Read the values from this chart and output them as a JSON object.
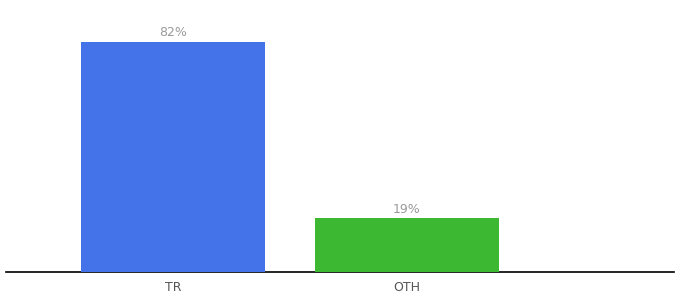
{
  "categories": [
    "TR",
    "OTH"
  ],
  "values": [
    82,
    19
  ],
  "bar_colors": [
    "#4472e8",
    "#3db832"
  ],
  "label_texts": [
    "82%",
    "19%"
  ],
  "background_color": "#ffffff",
  "axis_line_color": "#000000",
  "label_color": "#999999",
  "ylim": [
    0,
    95
  ],
  "bar_width": 0.55,
  "label_fontsize": 9,
  "tick_fontsize": 9,
  "x_positions": [
    0.3,
    1.0
  ],
  "xlim": [
    -0.2,
    1.8
  ]
}
